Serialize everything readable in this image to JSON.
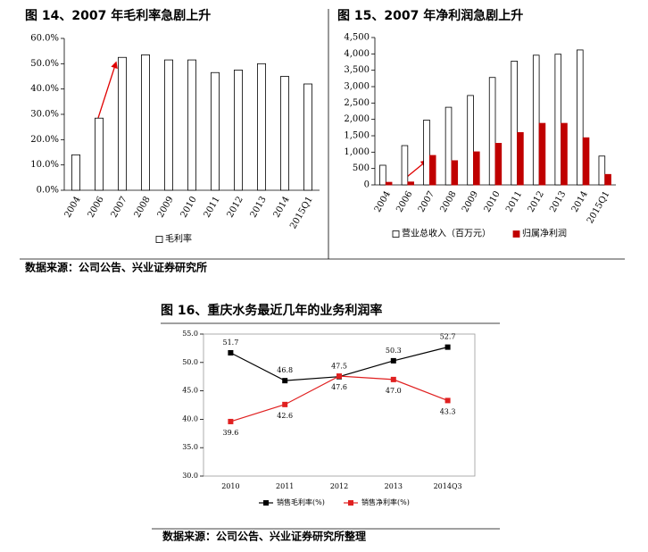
{
  "chart_data": [
    {
      "type": "bar",
      "title": "图 14、2007 年毛利率急剧上升",
      "categories": [
        "2004",
        "2006",
        "2007",
        "2008",
        "2009",
        "2010",
        "2011",
        "2012",
        "2013",
        "2014",
        "2015Q1"
      ],
      "series": [
        {
          "name": "毛利率",
          "color": "#ffffff",
          "edgecolor": "#000000",
          "values": [
            14,
            28.5,
            52.5,
            53.5,
            51.5,
            51.5,
            46.5,
            47.5,
            50,
            45,
            42
          ]
        }
      ],
      "ylim": [
        0,
        60
      ],
      "yticks": [
        {
          "value": 0,
          "label": "0.0%"
        },
        {
          "value": 10,
          "label": "10.0%"
        },
        {
          "value": 20,
          "label": "20.0%"
        },
        {
          "value": 30,
          "label": "30.0%"
        },
        {
          "value": 40,
          "label": "40.0%"
        },
        {
          "value": 50,
          "label": "50.0%"
        },
        {
          "value": 60,
          "label": "60.0%"
        }
      ],
      "grid": false,
      "legend": "bottom"
    },
    {
      "type": "bar",
      "title": "图 15、2007 年净利润急剧上升",
      "categories": [
        "2004",
        "2006",
        "2007",
        "2008",
        "2009",
        "2010",
        "2011",
        "2012",
        "2013",
        "2014",
        "2015Q1"
      ],
      "series": [
        {
          "name": "营业总收入（百万元）",
          "color": "#ffffff",
          "edgecolor": "#000000",
          "values": [
            600,
            1200,
            1980,
            2370,
            2730,
            3280,
            3780,
            3960,
            3990,
            4120,
            880
          ]
        },
        {
          "name": "归属净利润",
          "color": "#c00000",
          "edgecolor": "#c00000",
          "values": [
            80,
            90,
            900,
            740,
            1010,
            1270,
            1600,
            1880,
            1880,
            1440,
            320
          ]
        }
      ],
      "ylim": [
        0,
        4500
      ],
      "yticks": [
        0,
        500,
        {
          "value": 1000,
          "label": "1,000"
        },
        {
          "value": 1500,
          "label": "1,500"
        },
        {
          "value": 2000,
          "label": "2,000"
        },
        {
          "value": 2500,
          "label": "2,500"
        },
        {
          "value": 3000,
          "label": "3,000"
        },
        {
          "value": 3500,
          "label": "3,500"
        },
        {
          "value": 4000,
          "label": "4,000"
        },
        {
          "value": 4500,
          "label": "4,500"
        }
      ],
      "grid": false,
      "legend": "bottom"
    },
    {
      "type": "line",
      "title": "图 16、重庆水务最近几年的业务利润率",
      "categories": [
        "2010",
        "2011",
        "2012",
        "2013",
        "2014Q3"
      ],
      "series": [
        {
          "name": "销售毛利率(%)",
          "color": "#000000",
          "values": [
            51.7,
            46.8,
            47.5,
            50.3,
            52.7
          ],
          "value_labels": [
            "51.7",
            "46.8",
            "47.5",
            "50.3",
            "52.7"
          ]
        },
        {
          "name": "销售净利率(%)",
          "color": "#e02020",
          "values": [
            39.6,
            42.6,
            47.6,
            47.0,
            43.3
          ],
          "value_labels": [
            "39.6",
            "42.6",
            "47.6",
            "47.0",
            "43.3"
          ]
        }
      ],
      "ylim": [
        30,
        55
      ],
      "yticks": [
        {
          "value": 30,
          "label": "30.0"
        },
        {
          "value": 35,
          "label": "35.0"
        },
        {
          "value": 40,
          "label": "40.0"
        },
        {
          "value": 45,
          "label": "45.0"
        },
        {
          "value": 50,
          "label": "50.0"
        },
        {
          "value": 55,
          "label": "55.0"
        }
      ],
      "grid": false,
      "legend": "bottom"
    }
  ],
  "sources": [
    "数据来源：公司公告、兴业证券研究所",
    "数据来源：公司公告、兴业证券研究所整理"
  ]
}
